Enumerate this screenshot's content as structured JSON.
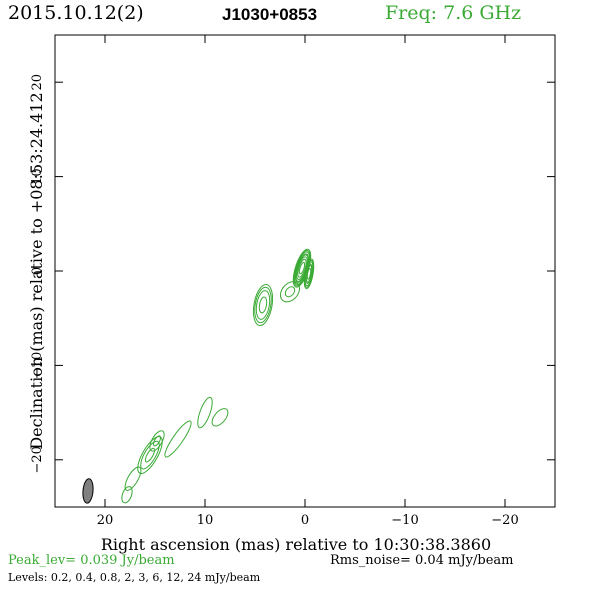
{
  "header": {
    "date": "2015.10.12(2)",
    "source": "J1030+0853",
    "freq": "Freq: 7.6 GHz"
  },
  "footer": {
    "peak": "Peak_lev=  0.039 Jy/beam",
    "rms": "Rms_noise= 0.04 mJy/beam",
    "levels": "Levels: 0.2, 0.4, 0.8,   2,   3,   6,  12,  24 mJy/beam"
  },
  "colors": {
    "contour": "#3aaa35",
    "axes": "#000000",
    "beam": "#808080"
  },
  "chart_data": {
    "type": "contour",
    "xlabel": "Right ascension (mas) relative to 10:30:38.3860",
    "ylabel": "Declination (mas) relative to +08:53:24.412",
    "xlim": [
      25,
      -25
    ],
    "ylim": [
      -25,
      25
    ],
    "xticks": [
      20,
      10,
      0,
      -10,
      -20
    ],
    "yticks": [
      20,
      10,
      0,
      -10,
      -20
    ],
    "xtick_labels": [
      "20",
      "10",
      "0",
      "−10",
      "−20"
    ],
    "ytick_labels": [
      "20",
      "10",
      "0",
      "−10",
      "−20"
    ],
    "levels_mJy": [
      0.2,
      0.4,
      0.8,
      2,
      3,
      6,
      12,
      24
    ],
    "components": [
      {
        "x": 0.3,
        "y": 0.3,
        "a": 2.1,
        "b": 0.65,
        "pa_deg": 18,
        "peak_mJy": 39
      },
      {
        "x": -0.4,
        "y": -0.3,
        "a": 1.6,
        "b": 0.4,
        "pa_deg": 10,
        "peak_mJy": 10
      },
      {
        "x": 4.2,
        "y": -3.6,
        "a": 2.2,
        "b": 0.9,
        "pa_deg": 10,
        "peak_mJy": 3
      },
      {
        "x": 1.5,
        "y": -2.2,
        "a": 1.2,
        "b": 0.8,
        "pa_deg": 40,
        "peak_mJy": 0.5
      },
      {
        "x": 10.0,
        "y": -15.0,
        "a": 1.7,
        "b": 0.5,
        "pa_deg": 20,
        "peak_mJy": 0.35
      },
      {
        "x": 8.5,
        "y": -15.5,
        "a": 1.1,
        "b": 0.55,
        "pa_deg": 40,
        "peak_mJy": 0.3
      },
      {
        "x": 12.7,
        "y": -17.8,
        "a": 2.3,
        "b": 0.5,
        "pa_deg": 35,
        "peak_mJy": 0.25
      },
      {
        "x": 15.5,
        "y": -19.5,
        "a": 2.2,
        "b": 0.75,
        "pa_deg": 30,
        "peak_mJy": 1.0
      },
      {
        "x": 14.8,
        "y": -18.0,
        "a": 1.2,
        "b": 0.5,
        "pa_deg": 30,
        "peak_mJy": 0.5
      },
      {
        "x": 17.2,
        "y": -22.0,
        "a": 1.4,
        "b": 0.5,
        "pa_deg": 30,
        "peak_mJy": 0.35
      },
      {
        "x": 17.8,
        "y": -23.7,
        "a": 0.9,
        "b": 0.45,
        "pa_deg": 20,
        "peak_mJy": 0.25
      }
    ],
    "beam": {
      "x": 21.7,
      "y": -23.3,
      "major_mas": 2.6,
      "minor_mas": 1.0,
      "pa_deg": 5
    }
  }
}
